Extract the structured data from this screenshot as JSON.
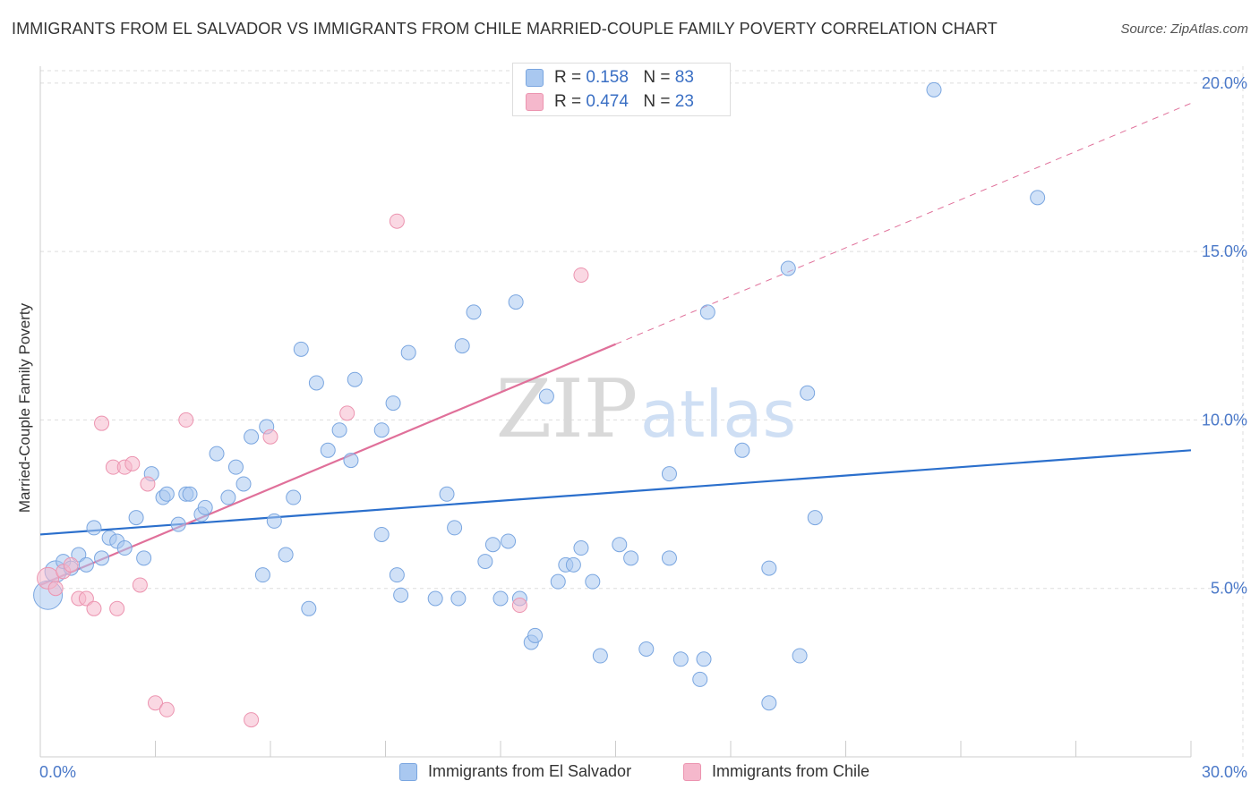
{
  "title": "IMMIGRANTS FROM EL SALVADOR VS IMMIGRANTS FROM CHILE MARRIED-COUPLE FAMILY POVERTY CORRELATION CHART",
  "source": "Source: ZipAtlas.com",
  "watermark": {
    "zip": "ZIP",
    "atlas": "atlas"
  },
  "legend_top": [
    {
      "r_label": "R =",
      "r_value": "0.158",
      "n_label": "N =",
      "n_value": "83"
    },
    {
      "r_label": "R =",
      "r_value": "0.474",
      "n_label": "N =",
      "n_value": "23"
    }
  ],
  "legend_bottom": [
    {
      "label": "Immigrants from El Salvador"
    },
    {
      "label": "Immigrants from Chile"
    }
  ],
  "colors": {
    "blue_fill": "#a9c8f0",
    "blue_stroke": "#7aa6e0",
    "blue_line": "#2b6fcc",
    "pink_fill": "#f5b8cc",
    "pink_stroke": "#ec94b0",
    "pink_line": "#e0709a",
    "grid": "#dedede",
    "tick_label": "#4a78c8"
  },
  "chart_data": {
    "type": "scatter",
    "title": "IMMIGRANTS FROM EL SALVADOR VS IMMIGRANTS FROM CHILE MARRIED-COUPLE FAMILY POVERTY CORRELATION CHART",
    "xlabel": "",
    "ylabel": "Married-Couple Family Poverty",
    "xlim": [
      0,
      30
    ],
    "ylim": [
      0,
      20.5
    ],
    "x_tick_labels": [
      {
        "value": 0,
        "label": "0.0%"
      },
      {
        "value": 30,
        "label": "30.0%"
      }
    ],
    "y_tick_labels": [
      {
        "value": 5,
        "label": "5.0%"
      },
      {
        "value": 10,
        "label": "10.0%"
      },
      {
        "value": 15,
        "label": "15.0%"
      },
      {
        "value": 20,
        "label": "20.0%"
      }
    ],
    "x_minor_ticks": [
      3,
      6,
      9,
      12,
      15,
      18,
      21,
      24,
      27,
      30
    ],
    "series": [
      {
        "name": "Immigrants from El Salvador",
        "color": "blue",
        "r": 0.158,
        "n": 83,
        "trend": {
          "x0": 0,
          "y0": 6.6,
          "x1": 30,
          "y1": 9.1,
          "solid_until": 30
        },
        "points": [
          [
            0.2,
            4.8,
            3
          ],
          [
            0.4,
            5.5,
            2
          ],
          [
            0.6,
            5.8,
            1
          ],
          [
            0.8,
            5.6,
            1
          ],
          [
            1.0,
            6.0,
            1
          ],
          [
            1.2,
            5.7,
            1
          ],
          [
            1.4,
            6.8,
            1
          ],
          [
            1.6,
            5.9,
            1
          ],
          [
            1.8,
            6.5,
            1
          ],
          [
            2.0,
            6.4,
            1
          ],
          [
            2.2,
            6.2,
            1
          ],
          [
            2.5,
            7.1,
            1
          ],
          [
            2.7,
            5.9,
            1
          ],
          [
            2.9,
            8.4,
            1
          ],
          [
            3.2,
            7.7,
            1
          ],
          [
            3.3,
            7.8,
            1
          ],
          [
            3.6,
            6.9,
            1
          ],
          [
            3.8,
            7.8,
            1
          ],
          [
            3.9,
            7.8,
            1
          ],
          [
            4.2,
            7.2,
            1
          ],
          [
            4.3,
            7.4,
            1
          ],
          [
            4.6,
            9.0,
            1
          ],
          [
            4.9,
            7.7,
            1
          ],
          [
            5.1,
            8.6,
            1
          ],
          [
            5.3,
            8.1,
            1
          ],
          [
            5.5,
            9.5,
            1
          ],
          [
            5.8,
            5.4,
            1
          ],
          [
            5.9,
            9.8,
            1
          ],
          [
            6.1,
            7.0,
            1
          ],
          [
            6.4,
            6.0,
            1
          ],
          [
            6.6,
            7.7,
            1
          ],
          [
            6.8,
            12.1,
            1
          ],
          [
            7.0,
            4.4,
            1
          ],
          [
            7.2,
            11.1,
            1
          ],
          [
            7.5,
            9.1,
            1
          ],
          [
            7.8,
            9.7,
            1
          ],
          [
            8.1,
            8.8,
            1
          ],
          [
            8.2,
            11.2,
            1
          ],
          [
            8.9,
            9.7,
            1
          ],
          [
            8.9,
            6.6,
            1
          ],
          [
            9.2,
            10.5,
            1
          ],
          [
            9.3,
            5.4,
            1
          ],
          [
            9.4,
            4.8,
            1
          ],
          [
            9.6,
            12.0,
            1
          ],
          [
            10.3,
            4.7,
            1
          ],
          [
            10.6,
            7.8,
            1
          ],
          [
            10.8,
            6.8,
            1
          ],
          [
            10.9,
            4.7,
            1
          ],
          [
            11.0,
            12.2,
            1
          ],
          [
            11.3,
            13.2,
            1
          ],
          [
            11.6,
            5.8,
            1
          ],
          [
            11.8,
            6.3,
            1
          ],
          [
            12.0,
            4.7,
            1
          ],
          [
            12.2,
            6.4,
            1
          ],
          [
            12.4,
            13.5,
            1
          ],
          [
            12.5,
            4.7,
            1
          ],
          [
            12.8,
            3.4,
            1
          ],
          [
            12.9,
            3.6,
            1
          ],
          [
            13.2,
            10.7,
            1
          ],
          [
            13.5,
            5.2,
            1
          ],
          [
            13.7,
            5.7,
            1
          ],
          [
            13.9,
            5.7,
            1
          ],
          [
            14.1,
            6.2,
            1
          ],
          [
            14.4,
            5.2,
            1
          ],
          [
            14.6,
            3.0,
            1
          ],
          [
            15.1,
            6.3,
            1
          ],
          [
            15.4,
            5.9,
            1
          ],
          [
            15.8,
            3.2,
            1
          ],
          [
            16.4,
            8.4,
            1
          ],
          [
            16.4,
            5.9,
            1
          ],
          [
            16.7,
            2.9,
            1
          ],
          [
            17.3,
            2.9,
            1
          ],
          [
            17.2,
            2.3,
            1
          ],
          [
            17.4,
            13.2,
            1
          ],
          [
            18.3,
            9.1,
            1
          ],
          [
            19.0,
            1.6,
            1
          ],
          [
            19.0,
            5.6,
            1
          ],
          [
            19.5,
            14.5,
            1
          ],
          [
            19.8,
            3.0,
            1
          ],
          [
            20.0,
            10.8,
            1
          ],
          [
            20.2,
            7.1,
            1
          ],
          [
            23.3,
            19.8,
            1
          ],
          [
            26.0,
            16.6,
            1
          ]
        ]
      },
      {
        "name": "Immigrants from Chile",
        "color": "pink",
        "r": 0.474,
        "n": 23,
        "trend": {
          "x0": 0,
          "y0": 5.1,
          "x1": 30,
          "y1": 19.4,
          "solid_until": 15
        },
        "points": [
          [
            0.2,
            5.3,
            2
          ],
          [
            0.4,
            5.0,
            1
          ],
          [
            0.6,
            5.5,
            1
          ],
          [
            0.8,
            5.7,
            1
          ],
          [
            1.0,
            4.7,
            1
          ],
          [
            1.2,
            4.7,
            1
          ],
          [
            1.4,
            4.4,
            1
          ],
          [
            1.6,
            9.9,
            1
          ],
          [
            1.9,
            8.6,
            1
          ],
          [
            2.0,
            4.4,
            1
          ],
          [
            2.2,
            8.6,
            1
          ],
          [
            2.4,
            8.7,
            1
          ],
          [
            2.6,
            5.1,
            1
          ],
          [
            2.8,
            8.1,
            1
          ],
          [
            3.0,
            1.6,
            1
          ],
          [
            3.3,
            1.4,
            1
          ],
          [
            3.8,
            10.0,
            1
          ],
          [
            5.5,
            1.1,
            1
          ],
          [
            6.0,
            9.5,
            1
          ],
          [
            8.0,
            10.2,
            1
          ],
          [
            9.3,
            15.9,
            1
          ],
          [
            12.5,
            4.5,
            1
          ],
          [
            14.1,
            14.3,
            1
          ]
        ]
      }
    ]
  }
}
